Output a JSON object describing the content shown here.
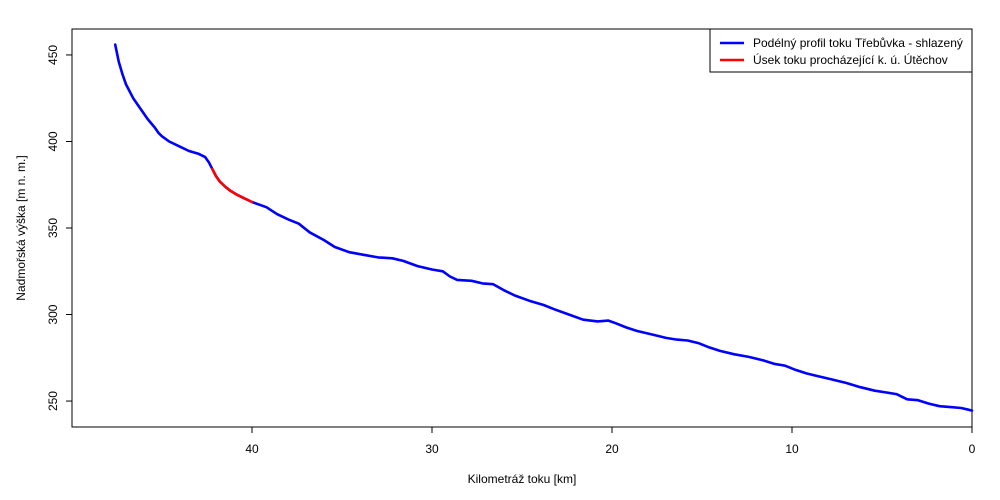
{
  "chart_data": {
    "type": "line",
    "xlabel": "Kilometráž toku [km]",
    "ylabel": "Nadmořská výška [m n. m.]",
    "xlim": [
      0,
      50
    ],
    "x_reversed": true,
    "ylim": [
      235,
      465
    ],
    "x_ticks": [
      40,
      30,
      20,
      10,
      0
    ],
    "y_ticks": [
      250,
      300,
      350,
      400,
      450
    ],
    "grid": false,
    "legend_position": "top-right",
    "series": [
      {
        "name": "Podélný profil toku Třebůvka - shlazený",
        "color": "#0000ff",
        "x": [
          47.6,
          47.4,
          47.2,
          47.0,
          46.6,
          46.2,
          45.8,
          45.4,
          45.2,
          45.0,
          44.6,
          44.0,
          43.5,
          43.0,
          42.6,
          42.4,
          42.2,
          42.0,
          41.8,
          41.5,
          41.2,
          40.8,
          40.4,
          40.0,
          39.2,
          38.6,
          38.0,
          37.4,
          36.8,
          36.0,
          35.4,
          34.6,
          33.8,
          33.0,
          32.2,
          31.6,
          30.8,
          30.0,
          29.4,
          29.0,
          28.6,
          27.8,
          27.2,
          26.6,
          26.0,
          25.4,
          24.6,
          23.8,
          23.2,
          22.4,
          21.6,
          20.8,
          20.2,
          19.8,
          19.2,
          18.6,
          17.8,
          17.0,
          16.4,
          15.8,
          15.2,
          14.6,
          14.0,
          13.2,
          12.4,
          11.6,
          11.0,
          10.4,
          9.8,
          9.2,
          8.6,
          7.8,
          7.0,
          6.2,
          5.4,
          4.8,
          4.2,
          3.6,
          3.0,
          2.4,
          1.8,
          1.2,
          0.6,
          0.2,
          0.0
        ],
        "y": [
          456,
          446,
          439,
          433,
          425,
          419,
          413,
          408,
          405,
          403,
          400,
          397,
          394.5,
          393,
          391,
          388,
          384,
          380,
          377,
          374,
          371.5,
          369,
          367,
          365,
          362,
          358,
          355,
          352.5,
          347.5,
          343,
          339,
          336,
          334.5,
          333,
          332.5,
          331,
          328,
          326,
          325,
          322,
          320,
          319.5,
          318,
          317.5,
          314,
          311,
          308,
          305.5,
          303,
          300,
          297,
          296,
          296.5,
          295,
          292.5,
          290.5,
          288.5,
          286.5,
          285.5,
          285,
          283.5,
          281,
          279,
          277,
          275.5,
          273.5,
          271.5,
          270.5,
          268,
          266,
          264.5,
          262.5,
          260.5,
          258,
          256,
          255,
          254,
          251,
          250.5,
          248.5,
          247,
          246.5,
          246,
          245,
          244.5
        ]
      },
      {
        "name": "Úsek toku procházející k. ú. Útěchov",
        "color": "#ff0000",
        "x": [
          42.2,
          42.0,
          41.8,
          41.5,
          41.2,
          40.8,
          40.4,
          40.0
        ],
        "y": [
          384,
          380,
          377,
          374,
          371.5,
          369,
          367,
          365
        ]
      }
    ]
  }
}
